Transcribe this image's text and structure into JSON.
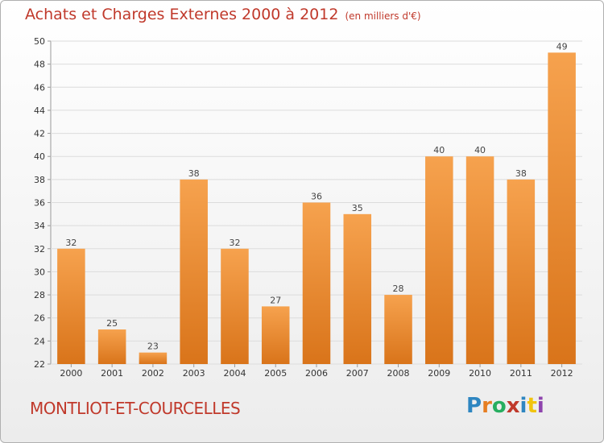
{
  "title": "Achats et Charges Externes 2000 à 2012",
  "subtitle": "(en milliers d'€)",
  "commune": "MONTLIOT-ET-COURCELLES",
  "logo": {
    "letters": [
      {
        "ch": "P",
        "color": "#2e86c1"
      },
      {
        "ch": "r",
        "color": "#e67e22"
      },
      {
        "ch": "o",
        "color": "#27ae60"
      },
      {
        "ch": "x",
        "color": "#c0392b"
      },
      {
        "ch": "i",
        "color": "#2e86c1"
      },
      {
        "ch": "t",
        "color": "#f1c40f"
      },
      {
        "ch": "i",
        "color": "#8e44ad"
      }
    ]
  },
  "colors": {
    "title": "#c0392b",
    "bar_light": "#f6a24e",
    "bar_dark": "#d9741a"
  },
  "chart_data": {
    "type": "bar",
    "title": "Achats et Charges Externes 2000 à 2012",
    "subtitle": "(en milliers d'€)",
    "categories": [
      "2000",
      "2001",
      "2002",
      "2003",
      "2004",
      "2005",
      "2006",
      "2007",
      "2008",
      "2009",
      "2010",
      "2011",
      "2012"
    ],
    "values": [
      32,
      25,
      23,
      38,
      32,
      27,
      36,
      35,
      28,
      40,
      40,
      38,
      49
    ],
    "ylim": [
      22,
      50
    ],
    "yticks": [
      22,
      24,
      26,
      28,
      30,
      32,
      34,
      36,
      38,
      40,
      42,
      44,
      46,
      48,
      50
    ],
    "grid": true,
    "legend": "none"
  }
}
